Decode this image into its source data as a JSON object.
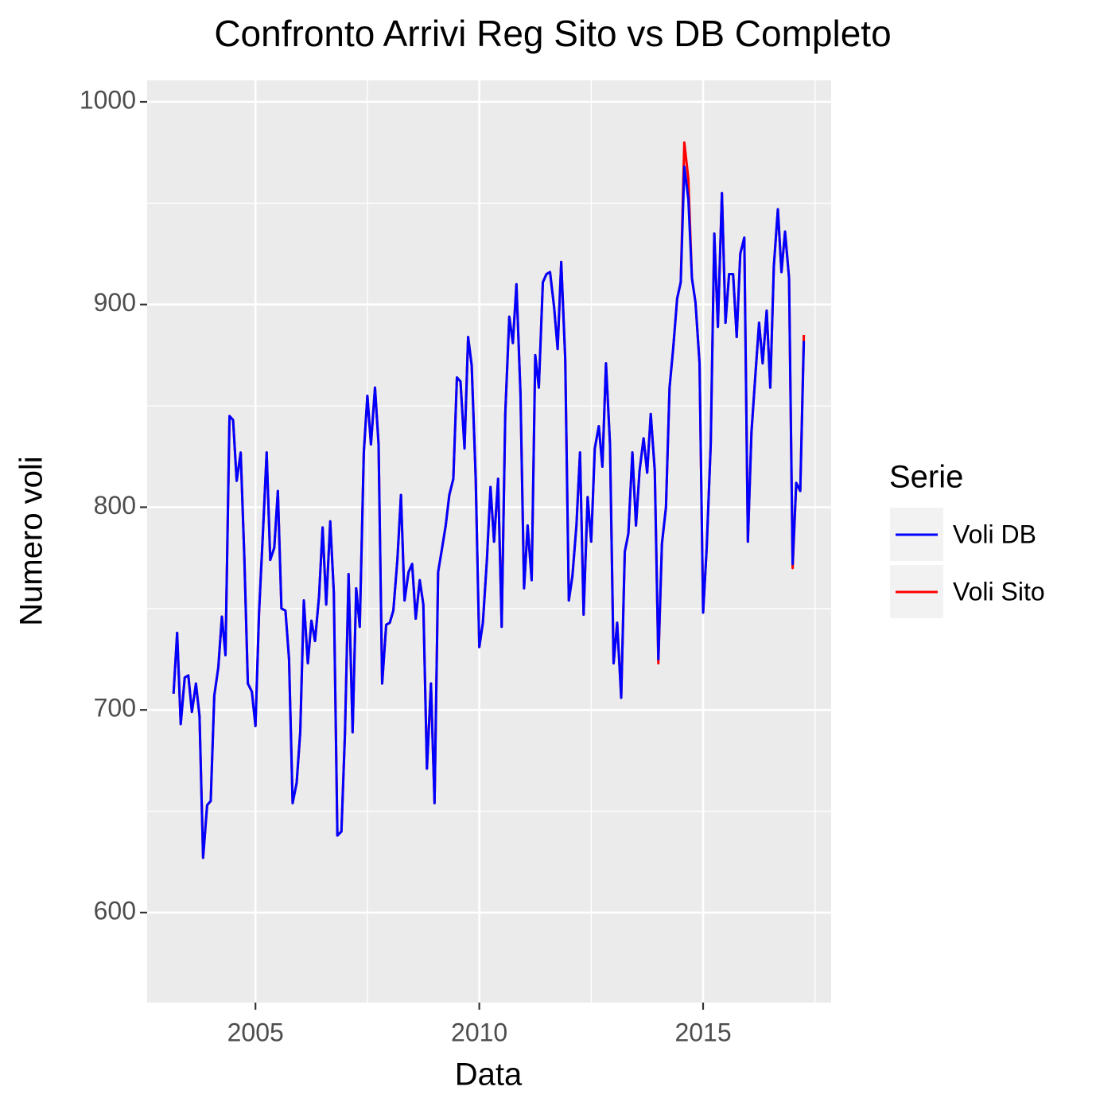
{
  "chart_data": {
    "type": "line",
    "title": "Confronto Arrivi Reg Sito vs DB Completo",
    "x_label": "Data",
    "y_label": "Numero voli",
    "legend_title": "Serie",
    "legend_position": "right",
    "grid": true,
    "xlim": [
      2002.58,
      2017.86
    ],
    "xticks": [
      2005,
      2010,
      2015
    ],
    "ylim": [
      555.6,
      1010.6
    ],
    "yticks": [
      600,
      700,
      800,
      900,
      1000
    ],
    "x": [
      2003.17,
      2003.25,
      2003.33,
      2003.42,
      2003.5,
      2003.58,
      2003.67,
      2003.75,
      2003.83,
      2003.92,
      2004.0,
      2004.08,
      2004.17,
      2004.25,
      2004.33,
      2004.42,
      2004.5,
      2004.58,
      2004.67,
      2004.75,
      2004.83,
      2004.92,
      2005.0,
      2005.08,
      2005.17,
      2005.25,
      2005.33,
      2005.42,
      2005.5,
      2005.58,
      2005.67,
      2005.75,
      2005.83,
      2005.92,
      2006.0,
      2006.08,
      2006.17,
      2006.25,
      2006.33,
      2006.42,
      2006.5,
      2006.58,
      2006.67,
      2006.75,
      2006.83,
      2006.92,
      2007.0,
      2007.08,
      2007.17,
      2007.25,
      2007.33,
      2007.42,
      2007.5,
      2007.58,
      2007.67,
      2007.75,
      2007.83,
      2007.92,
      2008.0,
      2008.08,
      2008.17,
      2008.25,
      2008.33,
      2008.42,
      2008.5,
      2008.58,
      2008.67,
      2008.75,
      2008.83,
      2008.92,
      2009.0,
      2009.08,
      2009.17,
      2009.25,
      2009.33,
      2009.42,
      2009.5,
      2009.58,
      2009.67,
      2009.75,
      2009.83,
      2009.92,
      2010.0,
      2010.08,
      2010.17,
      2010.25,
      2010.33,
      2010.42,
      2010.5,
      2010.58,
      2010.67,
      2010.75,
      2010.83,
      2010.92,
      2011.0,
      2011.08,
      2011.17,
      2011.25,
      2011.33,
      2011.42,
      2011.5,
      2011.58,
      2011.67,
      2011.75,
      2011.83,
      2011.92,
      2012.0,
      2012.08,
      2012.17,
      2012.25,
      2012.33,
      2012.42,
      2012.5,
      2012.58,
      2012.67,
      2012.75,
      2012.83,
      2012.92,
      2013.0,
      2013.08,
      2013.17,
      2013.25,
      2013.33,
      2013.42,
      2013.5,
      2013.58,
      2013.67,
      2013.75,
      2013.83,
      2013.92,
      2014.0,
      2014.08,
      2014.17,
      2014.25,
      2014.33,
      2014.42,
      2014.5,
      2014.58,
      2014.67,
      2014.75,
      2014.83,
      2014.92,
      2015.0,
      2015.08,
      2015.17,
      2015.25,
      2015.33,
      2015.42,
      2015.5,
      2015.58,
      2015.67,
      2015.75,
      2015.83,
      2015.92,
      2016.0,
      2016.08,
      2016.17,
      2016.25,
      2016.33,
      2016.42,
      2016.5,
      2016.58,
      2016.67,
      2016.75,
      2016.83,
      2016.92,
      2017.0,
      2017.08,
      2017.17,
      2017.25
    ],
    "series": [
      {
        "name": "Voli DB",
        "color": "#0000ff",
        "values": [
          708,
          738,
          693,
          716,
          717,
          699,
          713,
          697,
          627,
          653,
          655,
          707,
          721,
          746,
          727,
          845,
          843,
          813,
          827,
          776,
          713,
          709,
          692,
          748,
          789,
          827,
          774,
          780,
          808,
          750,
          749,
          725,
          654,
          664,
          689,
          754,
          723,
          744,
          734,
          756,
          790,
          752,
          793,
          758,
          638,
          640,
          689,
          767,
          689,
          760,
          741,
          827,
          855,
          831,
          859,
          831,
          713,
          742,
          743,
          749,
          774,
          806,
          754,
          768,
          772,
          745,
          764,
          752,
          671,
          713,
          654,
          768,
          780,
          791,
          806,
          814,
          864,
          862,
          829,
          884,
          870,
          814,
          731,
          743,
          774,
          810,
          783,
          814,
          741,
          846,
          894,
          881,
          910,
          856,
          760,
          791,
          764,
          875,
          859,
          911,
          915,
          916,
          899,
          878,
          921,
          873,
          754,
          766,
          791,
          827,
          747,
          805,
          783,
          829,
          840,
          820,
          871,
          831,
          723,
          743,
          706,
          778,
          787,
          827,
          791,
          818,
          834,
          817,
          846,
          818,
          725,
          782,
          800,
          859,
          878,
          903,
          911,
          968,
          952,
          913,
          901,
          871,
          748,
          780,
          831,
          935,
          889,
          955,
          891,
          915,
          915,
          884,
          925,
          933,
          783,
          837,
          866,
          891,
          871,
          897,
          859,
          919,
          947,
          916,
          936,
          913,
          772,
          812,
          808,
          882
        ]
      },
      {
        "name": "Voli Sito",
        "color": "#ff0000",
        "values": [
          708,
          738,
          693,
          716,
          717,
          699,
          713,
          697,
          627,
          653,
          655,
          707,
          721,
          746,
          727,
          845,
          843,
          813,
          827,
          776,
          713,
          709,
          692,
          748,
          789,
          827,
          774,
          780,
          808,
          750,
          749,
          725,
          654,
          664,
          689,
          754,
          723,
          744,
          734,
          756,
          790,
          752,
          793,
          758,
          638,
          640,
          689,
          767,
          689,
          760,
          741,
          827,
          855,
          831,
          859,
          831,
          713,
          742,
          743,
          749,
          774,
          806,
          754,
          768,
          772,
          745,
          764,
          752,
          671,
          713,
          654,
          768,
          780,
          791,
          806,
          814,
          864,
          862,
          829,
          884,
          870,
          814,
          731,
          743,
          774,
          810,
          783,
          814,
          741,
          846,
          894,
          881,
          910,
          856,
          760,
          791,
          764,
          875,
          859,
          911,
          915,
          916,
          899,
          878,
          921,
          873,
          754,
          766,
          791,
          827,
          747,
          805,
          783,
          829,
          840,
          820,
          871,
          831,
          723,
          743,
          706,
          778,
          787,
          827,
          791,
          818,
          834,
          817,
          846,
          818,
          723,
          782,
          800,
          859,
          878,
          903,
          911,
          980,
          962,
          913,
          901,
          871,
          748,
          780,
          831,
          935,
          889,
          955,
          891,
          915,
          915,
          884,
          925,
          933,
          783,
          837,
          866,
          891,
          871,
          897,
          859,
          919,
          947,
          916,
          936,
          913,
          770,
          812,
          808,
          885
        ]
      }
    ]
  }
}
